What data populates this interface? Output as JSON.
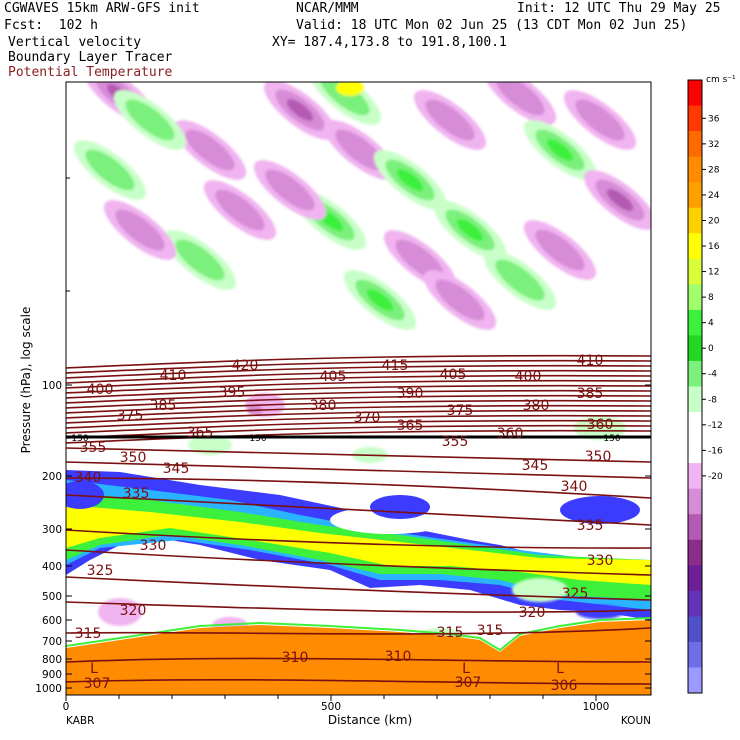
{
  "header": {
    "model": "CGWAVES 15km ARW-GFS init",
    "org": "NCAR/MMM",
    "init": "Init: 12 UTC Thu 29 May 25",
    "fcst": "Fcst:  102 h",
    "valid": "Valid: 18 UTC Mon 02 Jun 25 (13 CDT Mon 02 Jun 25)",
    "xy": "XY= 187.4,173.8 to 191.8,100.1",
    "field1": "Vertical velocity",
    "field2": "Boundary Layer Tracer",
    "field3": "Potential Temperature"
  },
  "colors": {
    "theta_line": "#7a1010",
    "tracer_line": "#000000"
  },
  "chart_data": {
    "type": "heatmap",
    "xlabel": "Distance (km)",
    "ylabel": "Pressure (hPa), log scale",
    "x_ticks": [
      "0",
      "500",
      "1000"
    ],
    "x_ends": [
      "KABR",
      "KOUN"
    ],
    "y_ticks": [
      "100",
      "200",
      "300",
      "400",
      "500",
      "600",
      "700",
      "800",
      "900",
      "1000"
    ],
    "colorbar": {
      "units": "cm s⁻¹",
      "labels": [
        "36",
        "32",
        "28",
        "24",
        "20",
        "16",
        "12",
        "8",
        "4",
        "0",
        "-4",
        "-8",
        "-12",
        "-16",
        "-20"
      ],
      "colors": [
        "#ff0000",
        "#ff3a00",
        "#ff6a00",
        "#ff8c00",
        "#ffa000",
        "#ffd000",
        "#ffff00",
        "#d8ff3a",
        "#a0ff6a",
        "#3cf03c",
        "#22d922",
        "#7cf07c",
        "#c8ffc8",
        "#ffffff",
        "#ffffff",
        "#f0b4f0",
        "#d78cd7",
        "#b45ab4",
        "#8c2d8c",
        "#6e1e96",
        "#6432b4",
        "#5050c8",
        "#6e6ee6",
        "#9a9aff"
      ]
    },
    "theta_labels": [
      "420",
      "415",
      "410",
      "410",
      "405",
      "405",
      "400",
      "400",
      "395",
      "390",
      "385",
      "385",
      "380",
      "380",
      "375",
      "375",
      "370",
      "365",
      "365",
      "360",
      "360",
      "355",
      "355",
      "350",
      "350",
      "345",
      "345",
      "340",
      "340",
      "335",
      "335",
      "330",
      "330",
      "325",
      "325",
      "320",
      "320",
      "315",
      "315",
      "315",
      "310",
      "310",
      "307",
      "307",
      "306"
    ],
    "tracer_labels": [
      "150",
      "150",
      "150"
    ],
    "low_markers": [
      "L",
      "L",
      "L"
    ]
  }
}
